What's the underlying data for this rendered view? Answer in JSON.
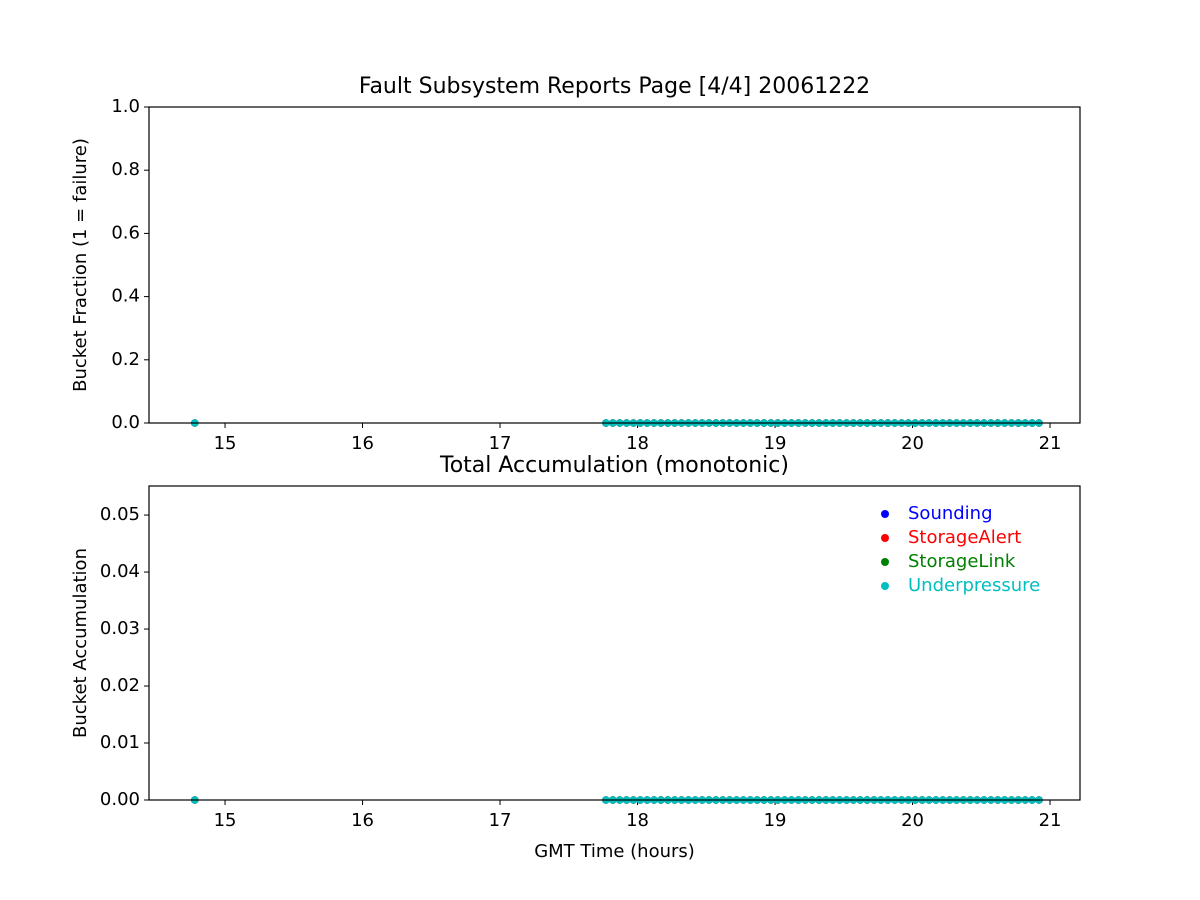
{
  "chart_data": [
    {
      "type": "scatter",
      "title": "Fault Subsystem Reports Page [4/4] 20061222",
      "y_label": "Bucket Fraction (1 = failure)",
      "x": [
        14.78,
        17.77,
        17.82,
        17.87,
        17.92,
        17.97,
        18.02,
        18.07,
        18.12,
        18.17,
        18.22,
        18.27,
        18.32,
        18.37,
        18.42,
        18.47,
        18.52,
        18.57,
        18.62,
        18.67,
        18.72,
        18.77,
        18.82,
        18.87,
        18.92,
        18.97,
        19.02,
        19.07,
        19.12,
        19.17,
        19.22,
        19.27,
        19.32,
        19.37,
        19.42,
        19.47,
        19.52,
        19.57,
        19.62,
        19.67,
        19.72,
        19.77,
        19.82,
        19.87,
        19.92,
        19.97,
        20.02,
        20.07,
        20.12,
        20.17,
        20.22,
        20.27,
        20.32,
        20.37,
        20.42,
        20.47,
        20.52,
        20.57,
        20.62,
        20.67,
        20.72,
        20.77,
        20.82,
        20.87,
        20.92
      ],
      "series": [
        {
          "color": "#0000ff",
          "values": [
            0,
            0,
            0,
            0,
            0,
            0,
            0,
            0,
            0,
            0,
            0,
            0,
            0,
            0,
            0,
            0,
            0,
            0,
            0,
            0,
            0,
            0,
            0,
            0,
            0,
            0,
            0,
            0,
            0,
            0,
            0,
            0,
            0,
            0,
            0,
            0,
            0,
            0,
            0,
            0,
            0,
            0,
            0,
            0,
            0,
            0,
            0,
            0,
            0,
            0,
            0,
            0,
            0,
            0,
            0,
            0,
            0,
            0,
            0,
            0,
            0,
            0,
            0,
            0,
            0
          ]
        },
        {
          "color": "#ff0000",
          "values": [
            0,
            0,
            0,
            0,
            0,
            0,
            0,
            0,
            0,
            0,
            0,
            0,
            0,
            0,
            0,
            0,
            0,
            0,
            0,
            0,
            0,
            0,
            0,
            0,
            0,
            0,
            0,
            0,
            0,
            0,
            0,
            0,
            0,
            0,
            0,
            0,
            0,
            0,
            0,
            0,
            0,
            0,
            0,
            0,
            0,
            0,
            0,
            0,
            0,
            0,
            0,
            0,
            0,
            0,
            0,
            0,
            0,
            0,
            0,
            0,
            0,
            0,
            0,
            0,
            0
          ]
        },
        {
          "color": "#008000",
          "values": [
            0,
            0,
            0,
            0,
            0,
            0,
            0,
            0,
            0,
            0,
            0,
            0,
            0,
            0,
            0,
            0,
            0,
            0,
            0,
            0,
            0,
            0,
            0,
            0,
            0,
            0,
            0,
            0,
            0,
            0,
            0,
            0,
            0,
            0,
            0,
            0,
            0,
            0,
            0,
            0,
            0,
            0,
            0,
            0,
            0,
            0,
            0,
            0,
            0,
            0,
            0,
            0,
            0,
            0,
            0,
            0,
            0,
            0,
            0,
            0,
            0,
            0,
            0,
            0,
            0
          ]
        },
        {
          "color": "#00bfbf",
          "values": [
            0,
            0,
            0,
            0,
            0,
            0,
            0,
            0,
            0,
            0,
            0,
            0,
            0,
            0,
            0,
            0,
            0,
            0,
            0,
            0,
            0,
            0,
            0,
            0,
            0,
            0,
            0,
            0,
            0,
            0,
            0,
            0,
            0,
            0,
            0,
            0,
            0,
            0,
            0,
            0,
            0,
            0,
            0,
            0,
            0,
            0,
            0,
            0,
            0,
            0,
            0,
            0,
            0,
            0,
            0,
            0,
            0,
            0,
            0,
            0,
            0,
            0,
            0,
            0,
            0
          ]
        }
      ],
      "xlim": [
        14.447,
        21.218
      ],
      "xticks": [
        15,
        16,
        17,
        18,
        19,
        20,
        21
      ],
      "ylim": [
        0,
        1
      ],
      "yticks": [
        {
          "value": 0,
          "label": "0.0"
        },
        0.2,
        0.4,
        0.6,
        0.8,
        {
          "value": 1,
          "label": "1.0"
        }
      ]
    },
    {
      "type": "scatter",
      "title": "Total Accumulation (monotonic)",
      "x_label": "GMT Time (hours)",
      "y_label": "Bucket Accumulation",
      "x": [
        14.78,
        17.77,
        17.82,
        17.87,
        17.92,
        17.97,
        18.02,
        18.07,
        18.12,
        18.17,
        18.22,
        18.27,
        18.32,
        18.37,
        18.42,
        18.47,
        18.52,
        18.57,
        18.62,
        18.67,
        18.72,
        18.77,
        18.82,
        18.87,
        18.92,
        18.97,
        19.02,
        19.07,
        19.12,
        19.17,
        19.22,
        19.27,
        19.32,
        19.37,
        19.42,
        19.47,
        19.52,
        19.57,
        19.62,
        19.67,
        19.72,
        19.77,
        19.82,
        19.87,
        19.92,
        19.97,
        20.02,
        20.07,
        20.12,
        20.17,
        20.22,
        20.27,
        20.32,
        20.37,
        20.42,
        20.47,
        20.52,
        20.57,
        20.62,
        20.67,
        20.72,
        20.77,
        20.82,
        20.87,
        20.92
      ],
      "series": [
        {
          "name": "Sounding",
          "color": "#0000ff",
          "values": [
            0,
            0,
            0,
            0,
            0,
            0,
            0,
            0,
            0,
            0,
            0,
            0,
            0,
            0,
            0,
            0,
            0,
            0,
            0,
            0,
            0,
            0,
            0,
            0,
            0,
            0,
            0,
            0,
            0,
            0,
            0,
            0,
            0,
            0,
            0,
            0,
            0,
            0,
            0,
            0,
            0,
            0,
            0,
            0,
            0,
            0,
            0,
            0,
            0,
            0,
            0,
            0,
            0,
            0,
            0,
            0,
            0,
            0,
            0,
            0,
            0,
            0,
            0,
            0,
            0
          ]
        },
        {
          "name": "StorageAlert",
          "color": "#ff0000",
          "values": [
            0,
            0,
            0,
            0,
            0,
            0,
            0,
            0,
            0,
            0,
            0,
            0,
            0,
            0,
            0,
            0,
            0,
            0,
            0,
            0,
            0,
            0,
            0,
            0,
            0,
            0,
            0,
            0,
            0,
            0,
            0,
            0,
            0,
            0,
            0,
            0,
            0,
            0,
            0,
            0,
            0,
            0,
            0,
            0,
            0,
            0,
            0,
            0,
            0,
            0,
            0,
            0,
            0,
            0,
            0,
            0,
            0,
            0,
            0,
            0,
            0,
            0,
            0,
            0,
            0
          ]
        },
        {
          "name": "StorageLink",
          "color": "#008000",
          "values": [
            0,
            0,
            0,
            0,
            0,
            0,
            0,
            0,
            0,
            0,
            0,
            0,
            0,
            0,
            0,
            0,
            0,
            0,
            0,
            0,
            0,
            0,
            0,
            0,
            0,
            0,
            0,
            0,
            0,
            0,
            0,
            0,
            0,
            0,
            0,
            0,
            0,
            0,
            0,
            0,
            0,
            0,
            0,
            0,
            0,
            0,
            0,
            0,
            0,
            0,
            0,
            0,
            0,
            0,
            0,
            0,
            0,
            0,
            0,
            0,
            0,
            0,
            0,
            0,
            0
          ]
        },
        {
          "name": "Underpressure",
          "color": "#00bfbf",
          "values": [
            0,
            0,
            0,
            0,
            0,
            0,
            0,
            0,
            0,
            0,
            0,
            0,
            0,
            0,
            0,
            0,
            0,
            0,
            0,
            0,
            0,
            0,
            0,
            0,
            0,
            0,
            0,
            0,
            0,
            0,
            0,
            0,
            0,
            0,
            0,
            0,
            0,
            0,
            0,
            0,
            0,
            0,
            0,
            0,
            0,
            0,
            0,
            0,
            0,
            0,
            0,
            0,
            0,
            0,
            0,
            0,
            0,
            0,
            0,
            0,
            0,
            0,
            0,
            0,
            0
          ]
        }
      ],
      "legend": "upper right",
      "xlim": [
        14.447,
        21.218
      ],
      "xticks": [
        15,
        16,
        17,
        18,
        19,
        20,
        21
      ],
      "ylim": [
        0,
        0.0551
      ],
      "yticks": [
        {
          "value": 0,
          "label": "0.00"
        },
        {
          "value": 0.01,
          "label": "0.01"
        },
        {
          "value": 0.02,
          "label": "0.02"
        },
        {
          "value": 0.03,
          "label": "0.03"
        },
        {
          "value": 0.04,
          "label": "0.04"
        },
        {
          "value": 0.05,
          "label": "0.05"
        }
      ]
    }
  ]
}
